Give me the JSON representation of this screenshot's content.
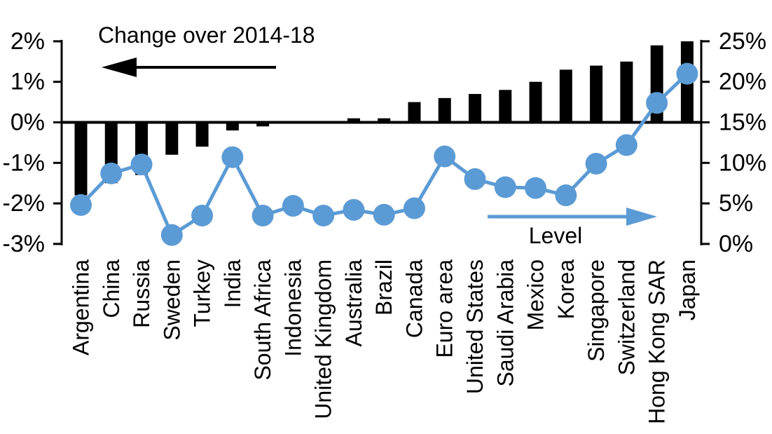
{
  "chart_data": {
    "type": "bar",
    "subtype": "combo-bar-line-dual-axis",
    "categories": [
      "Argentina",
      "China",
      "Russia",
      "Sweden",
      "Turkey",
      "India",
      "South Africa",
      "Indonesia",
      "United Kingdom",
      "Australia",
      "Brazil",
      "Canada",
      "Euro area",
      "United States",
      "Saudi Arabia",
      "Mexico",
      "Korea",
      "Singapore",
      "Switzerland",
      "Hong Kong SAR",
      "Japan"
    ],
    "series": [
      {
        "name": "Change over 2014-18",
        "type": "bar",
        "axis": "left",
        "color": "#000000",
        "values": [
          -1.8,
          -1.5,
          -1.3,
          -0.8,
          -0.6,
          -0.2,
          -0.1,
          0,
          0,
          0.1,
          0.1,
          0.5,
          0.6,
          0.7,
          0.8,
          1.0,
          1.3,
          1.4,
          1.5,
          1.9,
          2.0
        ]
      },
      {
        "name": "Level",
        "type": "line",
        "axis": "right",
        "color": "#5B9BD5",
        "values": [
          4.8,
          8.7,
          9.8,
          1.1,
          3.5,
          10.7,
          3.5,
          4.7,
          3.5,
          4.2,
          3.6,
          4.4,
          10.8,
          8.0,
          7.0,
          6.9,
          6.0,
          9.9,
          12.2,
          17.4,
          21.0
        ]
      }
    ],
    "left_axis": {
      "min": -3,
      "max": 2,
      "tick_step": 1,
      "unit": "%",
      "tick_labels": [
        "2%",
        "1%",
        "0%",
        "-1%",
        "-2%",
        "-3%"
      ]
    },
    "right_axis": {
      "min": 0,
      "max": 25,
      "tick_step": 5,
      "unit": "%",
      "tick_labels": [
        "25%",
        "20%",
        "15%",
        "10%",
        "5%",
        "0%"
      ]
    },
    "annotations": [
      {
        "text": "Change over 2014-18",
        "arrow": "left",
        "arrow_color": "#000000"
      },
      {
        "text": "Level",
        "arrow": "right",
        "arrow_color": "#5B9BD5"
      }
    ],
    "grid": false,
    "legend_position": "none",
    "background": "#ffffff"
  }
}
